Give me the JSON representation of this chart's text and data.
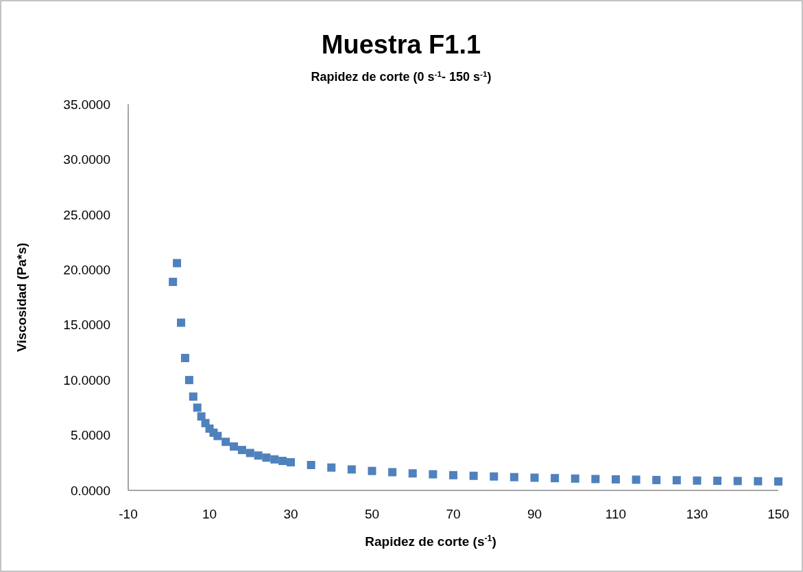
{
  "chart_data": {
    "type": "scatter",
    "title": "Muestra F1.1",
    "subtitle": "Rapidez de corte (0 s$^{-1}$- 150 s$^{-1}$)",
    "xlabel": "Rapidez de corte (s$^{-1}$)",
    "ylabel": "Viscosidad (Pa*s)",
    "x": [
      1,
      2,
      3,
      4,
      5,
      6,
      7,
      8,
      9,
      10,
      11,
      12,
      14,
      16,
      18,
      20,
      22,
      24,
      26,
      28,
      30,
      35,
      40,
      45,
      50,
      55,
      60,
      65,
      70,
      75,
      80,
      85,
      90,
      95,
      100,
      105,
      110,
      115,
      120,
      125,
      130,
      135,
      140,
      145,
      150
    ],
    "series": [
      {
        "color": "#4f81bd",
        "values": [
          18.9,
          20.6,
          15.2,
          12.0,
          10.0,
          8.5,
          7.5,
          6.7,
          6.1,
          5.6,
          5.23,
          4.93,
          4.4,
          3.98,
          3.66,
          3.39,
          3.16,
          2.97,
          2.81,
          2.67,
          2.55,
          2.3,
          2.07,
          1.9,
          1.76,
          1.65,
          1.54,
          1.46,
          1.38,
          1.32,
          1.26,
          1.2,
          1.15,
          1.11,
          1.07,
          1.03,
          1.0,
          0.97,
          0.94,
          0.92,
          0.89,
          0.87,
          0.85,
          0.83,
          0.81
        ]
      }
    ],
    "xlim": [
      -10,
      150
    ],
    "xticks": [
      -10,
      10,
      30,
      50,
      70,
      90,
      110,
      130,
      150
    ],
    "ylim": [
      0,
      35
    ],
    "yticks": [
      {
        "value": 0,
        "label": "0.0000"
      },
      {
        "value": 5,
        "label": "5.0000"
      },
      {
        "value": 10,
        "label": "10.0000"
      },
      {
        "value": 15,
        "label": "15.0000"
      },
      {
        "value": 20,
        "label": "20.0000"
      },
      {
        "value": 25,
        "label": "25.0000"
      },
      {
        "value": 30,
        "label": "30.0000"
      },
      {
        "value": 35,
        "label": "35.0000"
      }
    ],
    "marker": "square",
    "grid": false
  }
}
